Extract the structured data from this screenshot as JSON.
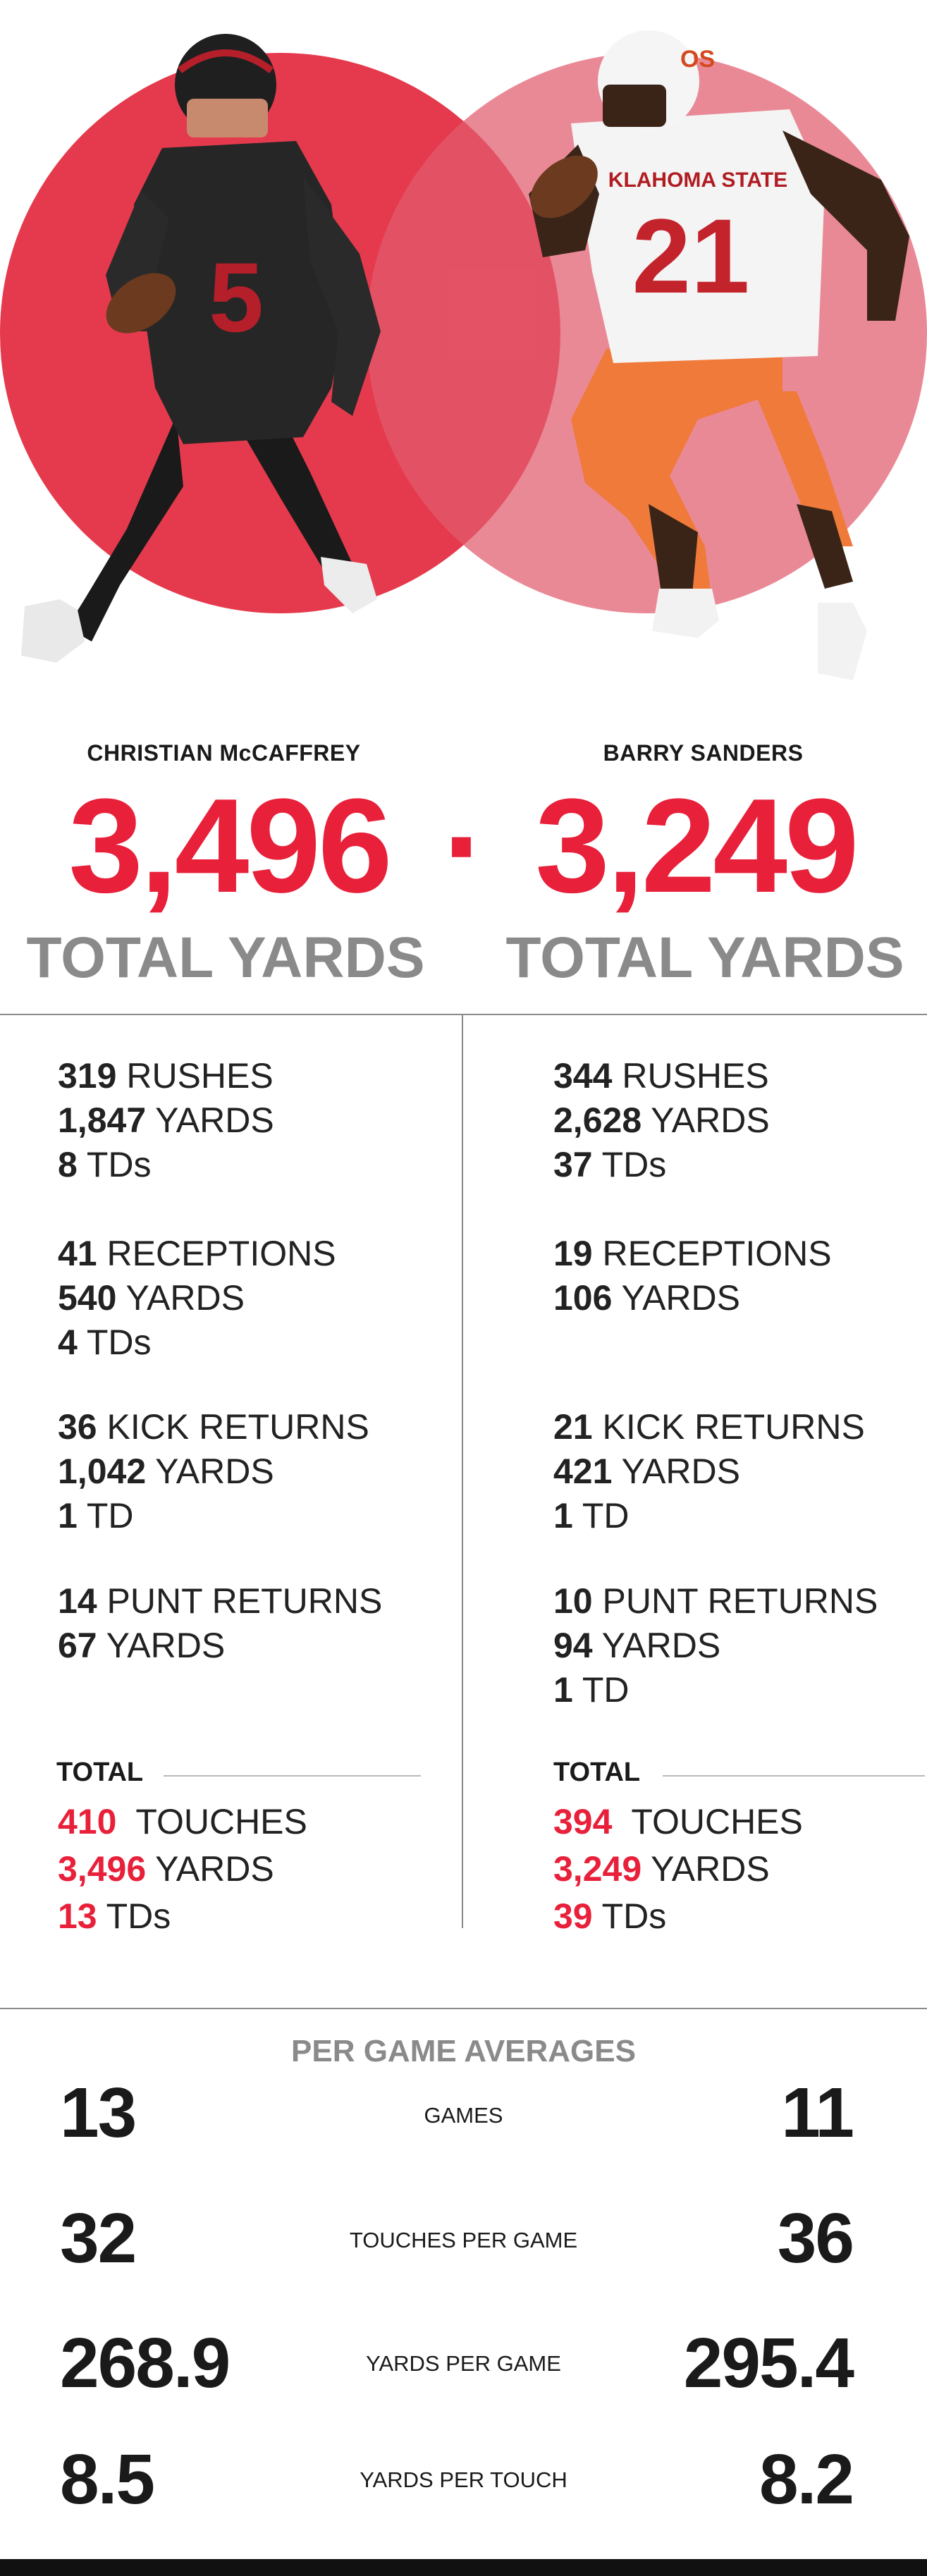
{
  "colors": {
    "accent": "#e8203a",
    "circle_left": "#e53a4d",
    "circle_right": "#ea8a95",
    "gray": "#8a8a8a"
  },
  "players": [
    {
      "name": "CHRISTIAN McCAFFREY",
      "total_yards": "3,496",
      "total_label": "TOTAL YARDS",
      "jersey": "5",
      "rushing": {
        "rushes": "319",
        "rushes_label": "RUSHES",
        "yards": "1,847",
        "yards_label": "YARDS",
        "tds": "8",
        "tds_label": "TDs"
      },
      "receiving": {
        "receptions": "41",
        "receptions_label": "RECEPTIONS",
        "yards": "540",
        "yards_label": "YARDS",
        "tds": "4",
        "tds_label": "TDs"
      },
      "kick_returns": {
        "count": "36",
        "count_label": "KICK RETURNS",
        "yards": "1,042",
        "yards_label": "YARDS",
        "tds": "1",
        "tds_label": "TD"
      },
      "punt_returns": {
        "count": "14",
        "count_label": "PUNT RETURNS",
        "yards": "67",
        "yards_label": "YARDS"
      },
      "total": {
        "heading": "TOTAL",
        "touches": "410",
        "touches_label": "TOUCHES",
        "yards": "3,496",
        "yards_label": "YARDS",
        "tds": "13",
        "tds_label": "TDs"
      }
    },
    {
      "name": "BARRY SANDERS",
      "total_yards": "3,249",
      "total_label": "TOTAL YARDS",
      "jersey": "21",
      "jersey_text": "KLAHOMA STATE",
      "rushing": {
        "rushes": "344",
        "rushes_label": "RUSHES",
        "yards": "2,628",
        "yards_label": "YARDS",
        "tds": "37",
        "tds_label": "TDs"
      },
      "receiving": {
        "receptions": "19",
        "receptions_label": "RECEPTIONS",
        "yards": "106",
        "yards_label": "YARDS"
      },
      "kick_returns": {
        "count": "21",
        "count_label": "KICK RETURNS",
        "yards": "421",
        "yards_label": "YARDS",
        "tds": "1",
        "tds_label": "TD"
      },
      "punt_returns": {
        "count": "10",
        "count_label": "PUNT RETURNS",
        "yards": "94",
        "yards_label": "YARDS",
        "tds": "1",
        "tds_label": "TD"
      },
      "total": {
        "heading": "TOTAL",
        "touches": "394",
        "touches_label": "TOUCHES",
        "yards": "3,249",
        "yards_label": "YARDS",
        "tds": "39",
        "tds_label": "TDs"
      }
    }
  ],
  "separator": "·",
  "averages": {
    "title": "PER GAME AVERAGES",
    "rows": [
      {
        "label": "GAMES",
        "left": "13",
        "right": "11"
      },
      {
        "label": "TOUCHES PER GAME",
        "left": "32",
        "right": "36"
      },
      {
        "label": "YARDS PER GAME",
        "left": "268.9",
        "right": "295.4"
      },
      {
        "label": "YARDS PER TOUCH",
        "left": "8.5",
        "right": "8.2"
      }
    ]
  }
}
